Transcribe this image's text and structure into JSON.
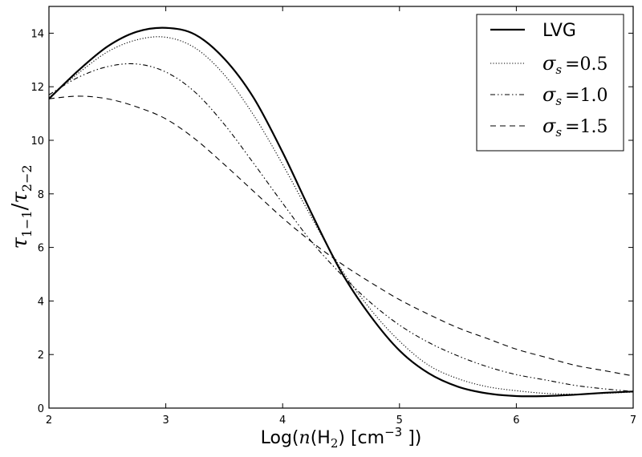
{
  "chart_data": {
    "type": "line",
    "title": "",
    "xlabel": {
      "prefix": "Log(",
      "var": "n",
      "open": "(H",
      "sub": "2",
      "close": ")",
      "unit_open": " [cm",
      "sup": "−3",
      "unit_close": " ])"
    },
    "ylabel": {
      "tau": "τ",
      "sub1": "1−1",
      "slash": "/",
      "sub2": "2−2"
    },
    "xlim": [
      2,
      7
    ],
    "ylim": [
      0,
      15
    ],
    "xticks": [
      2,
      3,
      4,
      5,
      6,
      7
    ],
    "yticks": [
      0,
      2,
      4,
      6,
      8,
      10,
      12,
      14
    ],
    "grid": false,
    "legend_position": "top-right",
    "series": [
      {
        "name": "LVG",
        "label_kind": "plain",
        "style": "solid",
        "x": [
          2.0,
          2.25,
          2.5,
          2.75,
          3.0,
          3.25,
          3.5,
          3.75,
          4.0,
          4.25,
          4.5,
          4.75,
          5.0,
          5.25,
          5.5,
          5.75,
          6.0,
          6.25,
          6.5,
          6.75,
          7.0
        ],
        "y": [
          11.55,
          12.6,
          13.5,
          14.05,
          14.2,
          13.95,
          13.05,
          11.6,
          9.55,
          7.25,
          5.1,
          3.45,
          2.15,
          1.3,
          0.8,
          0.55,
          0.45,
          0.45,
          0.5,
          0.57,
          0.62
        ]
      },
      {
        "name_var": "σ",
        "name_sub": "s",
        "name_val": "=0.5",
        "label_kind": "sigma",
        "style": "dotted",
        "x": [
          2.0,
          2.25,
          2.5,
          2.75,
          3.0,
          3.25,
          3.5,
          3.75,
          4.0,
          4.25,
          4.5,
          4.75,
          5.0,
          5.25,
          5.5,
          5.75,
          6.0,
          6.25,
          6.5,
          6.75,
          7.0
        ],
        "y": [
          11.6,
          12.5,
          13.3,
          13.75,
          13.85,
          13.45,
          12.45,
          10.95,
          9.1,
          7.1,
          5.2,
          3.7,
          2.5,
          1.6,
          1.1,
          0.8,
          0.65,
          0.55,
          0.52,
          0.55,
          0.6
        ]
      },
      {
        "name_var": "σ",
        "name_sub": "s",
        "name_val": "=1.0",
        "label_kind": "sigma",
        "style": "dashdot",
        "x": [
          2.0,
          2.25,
          2.5,
          2.75,
          3.0,
          3.25,
          3.5,
          3.75,
          4.0,
          4.25,
          4.5,
          4.75,
          5.0,
          5.25,
          5.5,
          5.75,
          6.0,
          6.25,
          6.5,
          6.75,
          7.0
        ],
        "y": [
          11.7,
          12.35,
          12.75,
          12.85,
          12.55,
          11.8,
          10.6,
          9.15,
          7.65,
          6.2,
          5.0,
          3.95,
          3.1,
          2.45,
          1.95,
          1.55,
          1.25,
          1.05,
          0.85,
          0.72,
          0.62
        ]
      },
      {
        "name_var": "σ",
        "name_sub": "s",
        "name_val": "=1.5",
        "label_kind": "sigma",
        "style": "dashed",
        "x": [
          2.0,
          2.25,
          2.5,
          2.75,
          3.0,
          3.25,
          3.5,
          3.75,
          4.0,
          4.25,
          4.5,
          4.75,
          5.0,
          5.25,
          5.5,
          5.75,
          6.0,
          6.25,
          6.5,
          6.75,
          7.0
        ],
        "y": [
          11.55,
          11.65,
          11.55,
          11.25,
          10.8,
          10.05,
          9.1,
          8.1,
          7.1,
          6.2,
          5.4,
          4.7,
          4.05,
          3.5,
          3.0,
          2.6,
          2.2,
          1.9,
          1.6,
          1.4,
          1.2
        ]
      }
    ]
  }
}
